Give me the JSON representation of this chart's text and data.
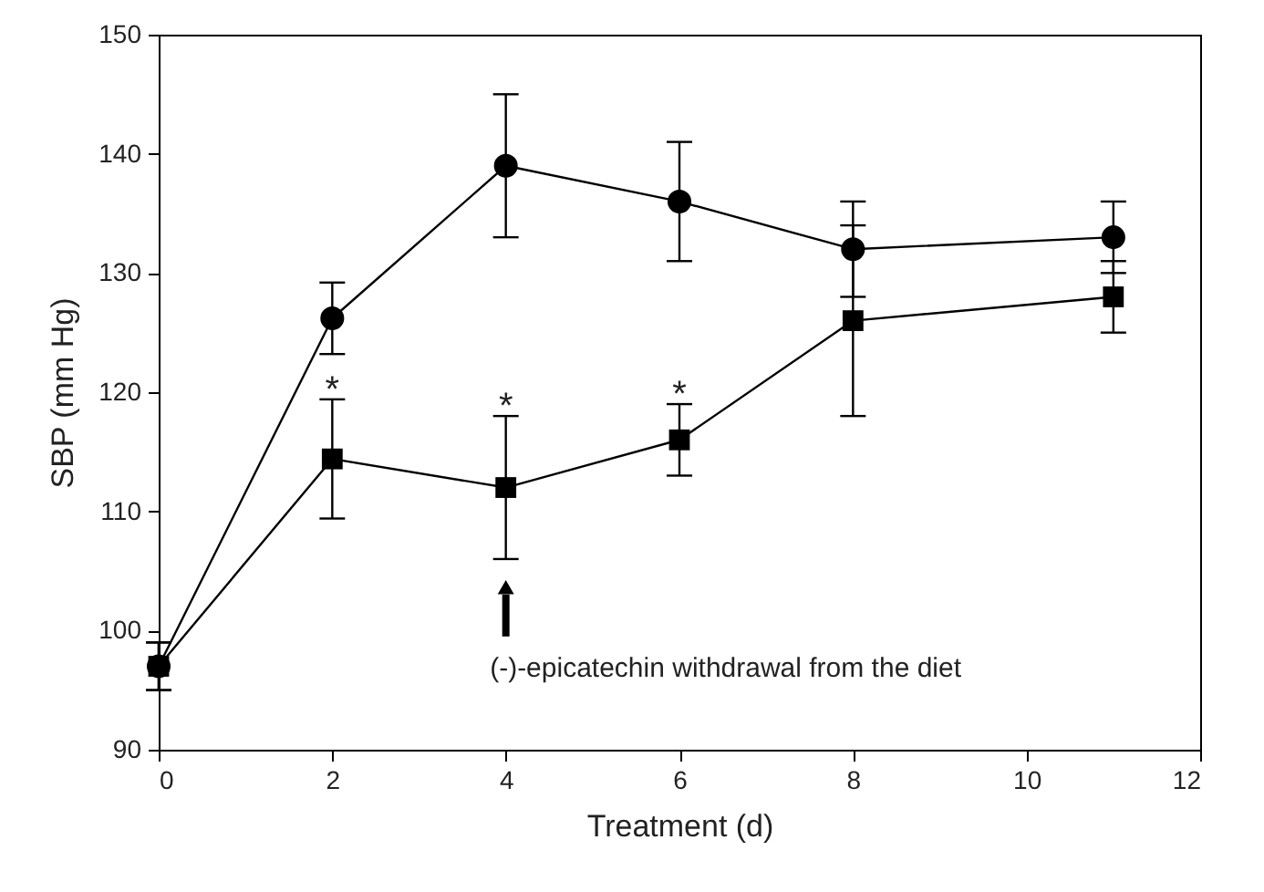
{
  "chart_data": {
    "type": "line",
    "xlabel": "Treatment (d)",
    "ylabel": "SBP (mm Hg)",
    "x": [
      0,
      2,
      4,
      6,
      8,
      11
    ],
    "series": [
      {
        "color": "#000000",
        "marker": "square",
        "values": [
          97,
          114.4,
          112,
          116,
          126,
          128
        ],
        "errors": [
          [
            95,
            99
          ],
          [
            109.4,
            119.4
          ],
          [
            106,
            118
          ],
          [
            113,
            119
          ],
          [
            118,
            134
          ],
          [
            125,
            131
          ]
        ]
      },
      {
        "color": "#000000",
        "marker": "circle",
        "values": [
          97,
          126.2,
          139,
          136,
          132,
          133
        ],
        "errors": [
          [
            95,
            99
          ],
          [
            123.2,
            129.2
          ],
          [
            133,
            145
          ],
          [
            131,
            141
          ],
          [
            128,
            136
          ],
          [
            130,
            136
          ]
        ]
      }
    ],
    "xlim": [
      0,
      12
    ],
    "xticks": [
      0,
      2,
      4,
      6,
      8,
      10,
      12
    ],
    "ylim": [
      90,
      150
    ],
    "yticks": [
      90,
      100,
      110,
      120,
      130,
      140,
      150
    ],
    "grid": false,
    "line_style": "solid",
    "annotations": [
      {
        "text": "*",
        "x": 2,
        "y": 119.4
      },
      {
        "text": "*",
        "x": 4,
        "y": 118
      },
      {
        "text": "*",
        "x": 6,
        "y": 119
      },
      "(-)-epicatechin withdrawal from the diet"
    ]
  }
}
